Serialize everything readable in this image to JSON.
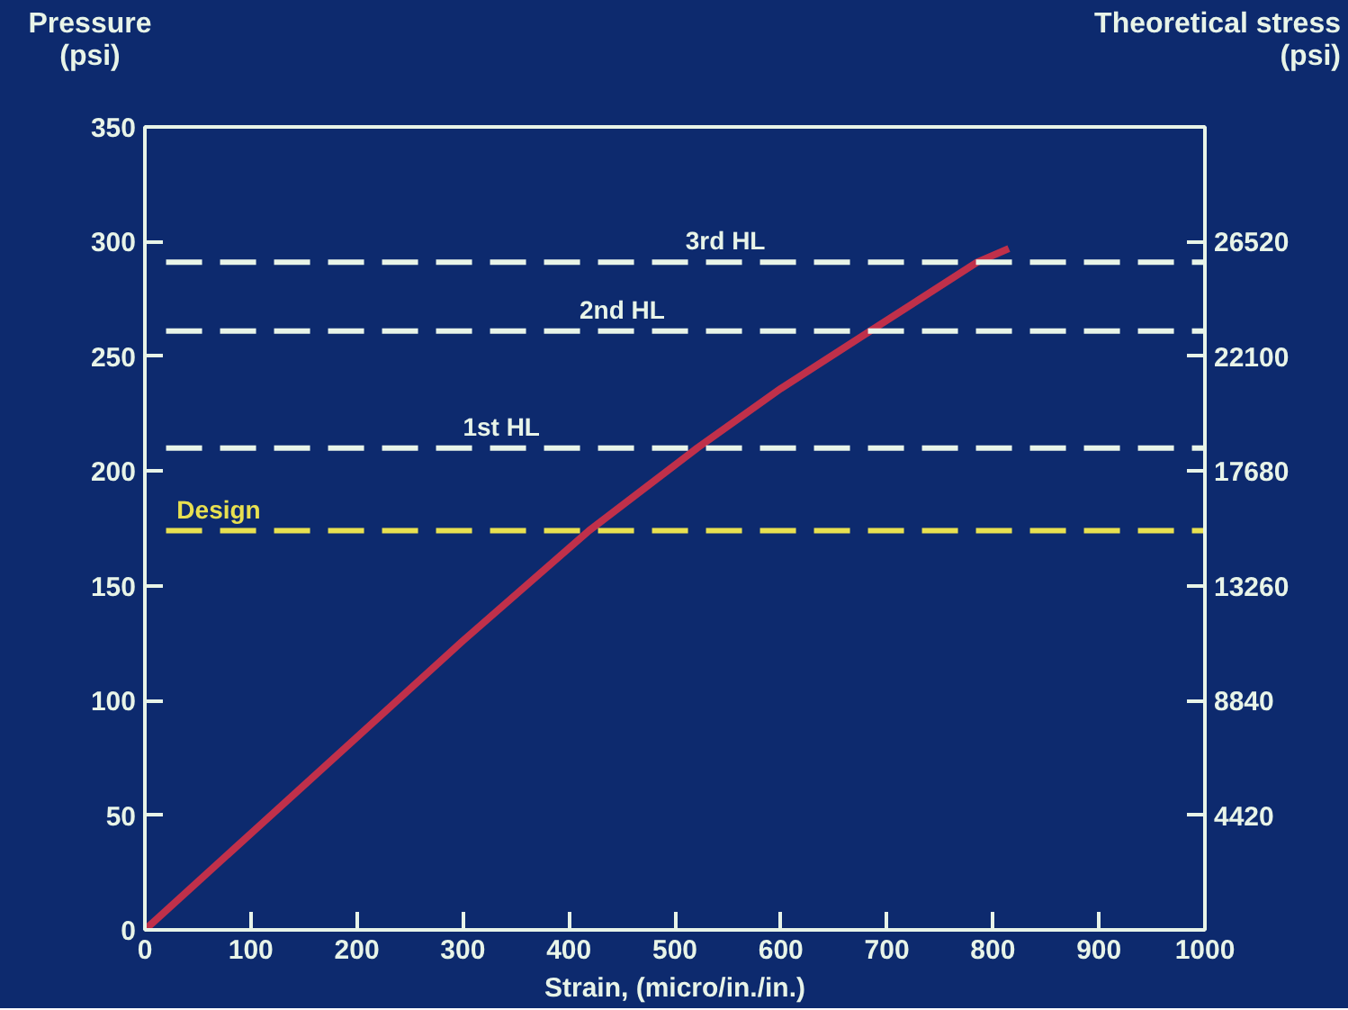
{
  "chart_data": {
    "type": "line",
    "xlabel": "Strain, (micro/in./in.)",
    "ylabel": "Pressure (psi)",
    "y2label": "Theoretical stress (psi)",
    "x": [
      0,
      100,
      200,
      300,
      419,
      521,
      600,
      684,
      785,
      815
    ],
    "series": [
      {
        "color": "#c0304a",
        "values": [
          0,
          42,
          84,
          126,
          174,
          210,
          236,
          261,
          291,
          297
        ]
      }
    ],
    "xlim": [
      0,
      1000
    ],
    "xticks": [
      0,
      100,
      200,
      300,
      400,
      500,
      600,
      700,
      800,
      900,
      1000
    ],
    "ylim": [
      0,
      350
    ],
    "yticks": [
      0,
      50,
      100,
      150,
      200,
      250,
      300,
      350
    ],
    "y2lim": [
      0,
      30940
    ],
    "y2ticks": [
      4420,
      8840,
      13260,
      17680,
      22100,
      26520
    ],
    "ref_lines": [
      {
        "axis": "y",
        "value": 174,
        "label": "Design",
        "color": "#e8e050",
        "line_style": "dashed"
      },
      {
        "axis": "y",
        "value": 210,
        "label": "1st HL",
        "color": "#e8f4e8",
        "line_style": "dashed"
      },
      {
        "axis": "y",
        "value": 261,
        "label": "2nd HL",
        "color": "#e8f4e8",
        "line_style": "dashed"
      },
      {
        "axis": "y",
        "value": 291,
        "label": "3rd HL",
        "color": "#e8f4e8",
        "line_style": "dashed"
      }
    ],
    "grid": false,
    "marker": "none",
    "line_style": "solid"
  }
}
